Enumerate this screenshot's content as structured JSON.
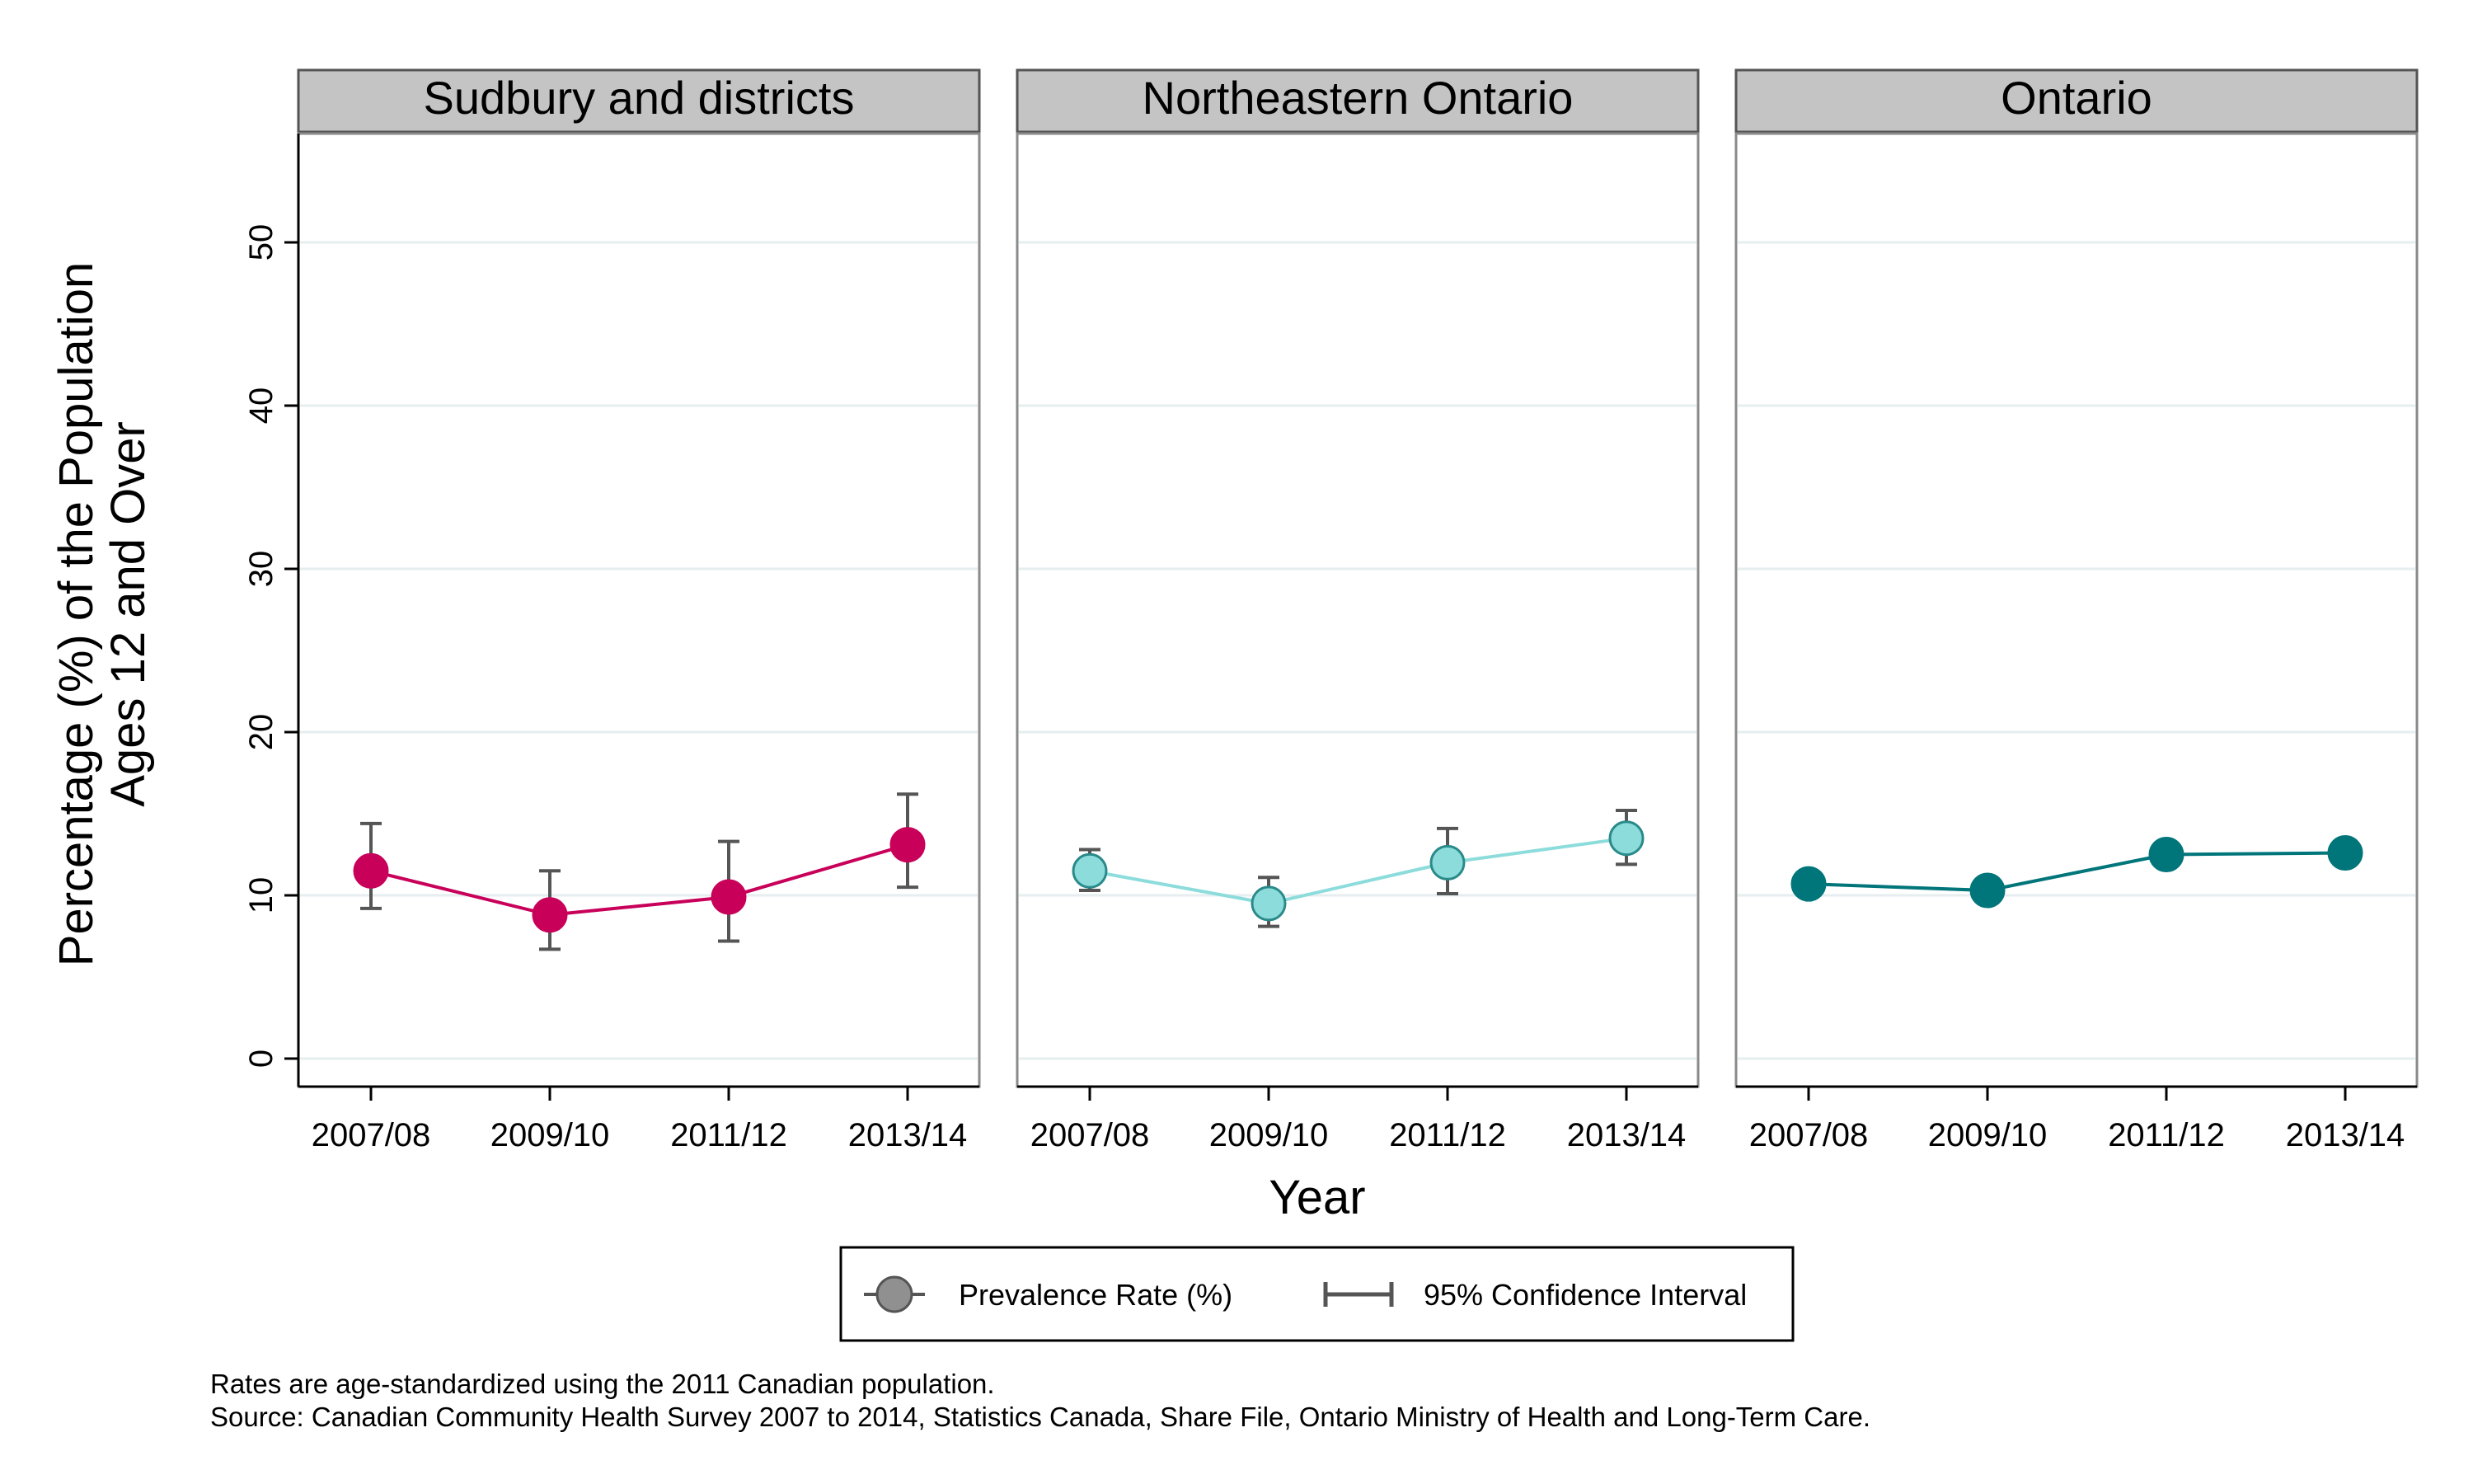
{
  "chart_data": {
    "type": "line",
    "layout": "three faceted panels sharing x and y axes",
    "categories": [
      "2007/08",
      "2009/10",
      "2011/12",
      "2013/14"
    ],
    "xlabel": "Year",
    "ylabel": [
      "Percentage (%) of the Population",
      "Ages 12 and Over"
    ],
    "ylim": [
      0,
      55
    ],
    "yticks": [
      0,
      10,
      20,
      30,
      40,
      50
    ],
    "grid": "horizontal",
    "legend": {
      "position": "bottom-center",
      "items": [
        {
          "label": "Prevalence Rate (%)",
          "symbol": "circle-line"
        },
        {
          "label": "95% Confidence Interval",
          "symbol": "error-bar"
        }
      ]
    },
    "panels": [
      {
        "title": "Sudbury and districts",
        "color": "#c8005a",
        "values": [
          11.5,
          8.8,
          9.9,
          13.1
        ],
        "ci_lower": [
          9.2,
          6.7,
          7.2,
          10.5
        ],
        "ci_upper": [
          14.4,
          11.5,
          13.3,
          16.2
        ]
      },
      {
        "title": "Northeastern Ontario",
        "color": "#8ddcdc",
        "values": [
          11.5,
          9.5,
          12.0,
          13.5
        ],
        "ci_lower": [
          10.3,
          8.1,
          10.1,
          11.9
        ],
        "ci_upper": [
          12.8,
          11.1,
          14.1,
          15.2
        ]
      },
      {
        "title": "Ontario",
        "color": "#00757a",
        "values": [
          10.7,
          10.3,
          12.5,
          12.6
        ],
        "ci_lower": null,
        "ci_upper": null
      }
    ],
    "notes": [
      "Rates are age-standardized using the 2011 Canadian population.",
      "Source: Canadian Community Health Survey 2007 to 2014, Statistics Canada, Share File, Ontario Ministry of Health and Long-Term Care."
    ]
  }
}
